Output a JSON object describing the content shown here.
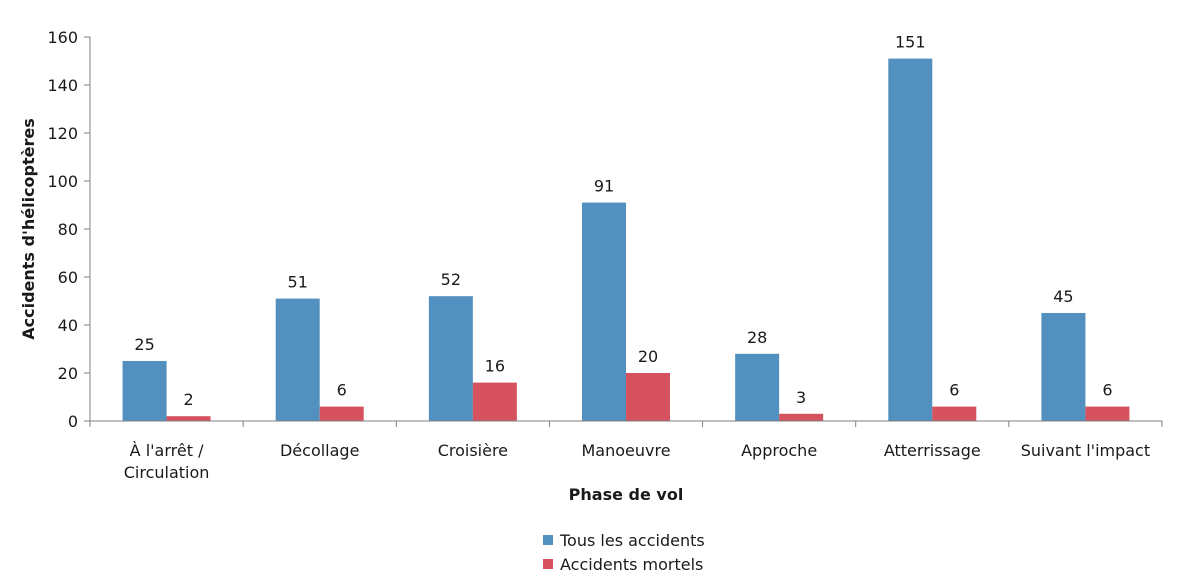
{
  "chart_data": {
    "type": "bar",
    "categories": [
      [
        "À l'arrêt /",
        "Circulation"
      ],
      [
        "Décollage"
      ],
      [
        "Croisière"
      ],
      [
        "Manoeuvre"
      ],
      [
        "Approche"
      ],
      [
        "Atterrissage"
      ],
      [
        "Suivant l'impact"
      ]
    ],
    "series": [
      {
        "name": "Tous les accidents",
        "color": "#5190bf",
        "values": [
          25,
          51,
          52,
          91,
          28,
          151,
          45
        ]
      },
      {
        "name": "Accidents mortels",
        "color": "#d6525e",
        "values": [
          2,
          6,
          16,
          20,
          3,
          6,
          6
        ]
      }
    ],
    "xlabel": "Phase de vol",
    "ylabel": "Accidents d'hélicoptères",
    "ylim": [
      0,
      160
    ],
    "yticks": [
      0,
      20,
      40,
      60,
      80,
      100,
      120,
      140,
      160
    ],
    "grid": false,
    "legend_position": "bottom"
  }
}
